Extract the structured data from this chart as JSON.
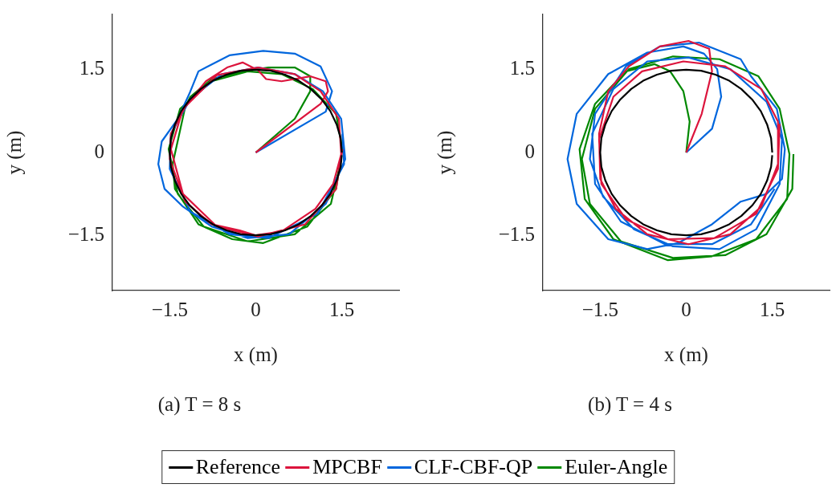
{
  "chart_data": [
    {
      "type": "line",
      "title": "(a) T = 8 s",
      "xlabel": "x (m)",
      "ylabel": "y (m)",
      "xlim": [
        -2.5,
        2.5
      ],
      "ylim": [
        -2.5,
        2.5
      ],
      "xticks": [
        -1.5,
        0,
        1.5
      ],
      "yticks": [
        -1.5,
        0,
        1.5
      ],
      "grid": false,
      "legend": "bottom",
      "marker": "none",
      "line_style": "solid",
      "series": [
        {
          "name": "Reference",
          "color": "#000000",
          "x": [
            1.5,
            1.48,
            1.41,
            1.3,
            1.15,
            0.96,
            0.75,
            0.51,
            0.26,
            0,
            -0.26,
            -0.51,
            -0.75,
            -0.96,
            -1.15,
            -1.3,
            -1.41,
            -1.48,
            -1.5,
            -1.48,
            -1.41,
            -1.3,
            -1.15,
            -0.96,
            -0.75,
            -0.51,
            -0.26,
            0,
            0.26,
            0.51,
            0.75,
            0.96,
            1.15,
            1.3,
            1.41,
            1.48,
            1.5
          ],
          "values": [
            0,
            0.26,
            0.51,
            0.75,
            0.96,
            1.15,
            1.3,
            1.41,
            1.48,
            1.5,
            1.48,
            1.41,
            1.3,
            1.15,
            0.96,
            0.75,
            0.51,
            0.26,
            0,
            -0.26,
            -0.51,
            -0.75,
            -0.96,
            -1.15,
            -1.3,
            -1.41,
            -1.48,
            -1.5,
            -1.48,
            -1.41,
            -1.3,
            -1.15,
            -0.96,
            -0.75,
            -0.51,
            -0.26,
            -0.05
          ]
        },
        {
          "name": "MPCBF",
          "color": "#dc143c",
          "x": [
            0,
            1.13,
            1.26,
            1.22,
            0.95,
            0.45,
            0.18,
            0.04,
            -0.23,
            -0.5,
            -0.87,
            -1.23,
            -1.48,
            -1.5,
            -1.36,
            -1.23,
            -0.77,
            -0.28,
            0,
            0.45,
            1.04,
            1.35,
            1.49,
            1.45,
            1.13,
            0.68,
            0.04,
            -0.68,
            -1.27,
            -1.48,
            -1.27,
            -0.68,
            0.04,
            0.86,
            1.4,
            1.51
          ],
          "values": [
            0,
            0.88,
            1.11,
            1.29,
            1.38,
            1.29,
            1.33,
            1.49,
            1.63,
            1.54,
            1.29,
            0.83,
            0.34,
            -0.12,
            -0.53,
            -0.89,
            -1.3,
            -1.41,
            -1.5,
            -1.43,
            -1.02,
            -0.57,
            -0.03,
            0.61,
            1.11,
            1.42,
            1.54,
            1.4,
            0.79,
            0.06,
            -0.75,
            -1.34,
            -1.52,
            -1.3,
            -0.66,
            0.06
          ]
        },
        {
          "name": "CLF-CBF-QP",
          "color": "#0066dd",
          "x": [
            0,
            1.22,
            1.33,
            1.13,
            0.68,
            0.13,
            -0.46,
            -1.0,
            -1.16,
            -1.36,
            -1.64,
            -1.7,
            -1.59,
            -1.27,
            -0.77,
            -0.14,
            0.58,
            1.22,
            1.56,
            1.49,
            1.17,
            0.68,
            0.04,
            -0.59,
            -1.14,
            -1.48,
            -1.5,
            -1.14,
            -0.46,
            0.22,
            1.08,
            1.54,
            1.51
          ],
          "values": [
            0,
            0.74,
            1.11,
            1.56,
            1.79,
            1.84,
            1.76,
            1.47,
            1.06,
            0.61,
            0.2,
            -0.21,
            -0.66,
            -0.98,
            -1.34,
            -1.55,
            -1.48,
            -0.93,
            -0.12,
            0.61,
            1.11,
            1.42,
            1.54,
            1.42,
            0.97,
            0.34,
            -0.3,
            -1.07,
            -1.48,
            -1.55,
            -1.11,
            -0.21,
            0.34
          ]
        },
        {
          "name": "Euler-Angle",
          "color": "#008800",
          "x": [
            0,
            0.68,
            0.95,
            0.95,
            0.68,
            0.22,
            -0.23,
            -0.77,
            -1.14,
            -1.23,
            -1.45,
            -1.41,
            -1.0,
            -0.41,
            0.13,
            0.9,
            1.4,
            1.51,
            1.4,
            0.99,
            0.45,
            -0.14,
            -0.77,
            -1.32,
            -1.52,
            -1.36,
            -0.91,
            -0.14,
            0.68,
            1.31,
            1.49
          ],
          "values": [
            0,
            0.61,
            1.11,
            1.38,
            1.54,
            1.54,
            1.47,
            1.33,
            1.01,
            0.83,
            -0.21,
            -0.66,
            -1.3,
            -1.57,
            -1.64,
            -1.34,
            -0.66,
            0.06,
            0.7,
            1.15,
            1.42,
            1.47,
            1.29,
            0.79,
            0.06,
            -0.75,
            -1.34,
            -1.61,
            -1.48,
            -0.93,
            -0.12
          ]
        }
      ]
    },
    {
      "type": "line",
      "title": "(b) T = 4 s",
      "xlabel": "x (m)",
      "ylabel": "y (m)",
      "xlim": [
        -2.5,
        2.5
      ],
      "ylim": [
        -2.5,
        2.5
      ],
      "xticks": [
        -1.5,
        0,
        1.5
      ],
      "yticks": [
        -1.5,
        0,
        1.5
      ],
      "grid": false,
      "legend": "bottom",
      "marker": "none",
      "line_style": "solid",
      "series": [
        {
          "name": "Reference",
          "color": "#000000",
          "x": [
            1.5,
            1.48,
            1.41,
            1.3,
            1.15,
            0.96,
            0.75,
            0.51,
            0.26,
            0,
            -0.26,
            -0.51,
            -0.75,
            -0.96,
            -1.15,
            -1.3,
            -1.41,
            -1.48,
            -1.5,
            -1.48,
            -1.41,
            -1.3,
            -1.15,
            -0.96,
            -0.75,
            -0.51,
            -0.26,
            0,
            0.26,
            0.51,
            0.75,
            0.96,
            1.15,
            1.3,
            1.41,
            1.48,
            1.5
          ],
          "values": [
            0,
            0.26,
            0.51,
            0.75,
            0.96,
            1.15,
            1.3,
            1.41,
            1.48,
            1.5,
            1.48,
            1.41,
            1.3,
            1.15,
            0.96,
            0.75,
            0.51,
            0.26,
            0,
            -0.26,
            -0.51,
            -0.75,
            -0.96,
            -1.15,
            -1.3,
            -1.41,
            -1.48,
            -1.5,
            -1.48,
            -1.41,
            -1.3,
            -1.15,
            -0.96,
            -0.75,
            -0.51,
            -0.26,
            -0.05
          ]
        },
        {
          "name": "MPCBF",
          "color": "#dc143c",
          "x": [
            0,
            0.27,
            0.45,
            0.4,
            0.04,
            -0.46,
            -1.0,
            -1.36,
            -1.52,
            -1.5,
            -1.23,
            -0.68,
            0.04,
            0.77,
            1.31,
            1.6,
            1.6,
            1.31,
            0.68,
            -0.05,
            -0.77,
            -1.27,
            -1.52,
            -1.48,
            -1.05,
            -0.32,
            0.49,
            1.22,
            1.6,
            1.63
          ],
          "values": [
            0,
            0.7,
            1.47,
            1.88,
            2.02,
            1.92,
            1.56,
            1.11,
            0.34,
            -0.48,
            -1.02,
            -1.48,
            -1.66,
            -1.48,
            -0.98,
            -0.21,
            0.56,
            1.15,
            1.56,
            1.65,
            1.47,
            1.01,
            0.24,
            -0.57,
            -1.21,
            -1.57,
            -1.55,
            -1.11,
            -0.3,
            0.52
          ]
        },
        {
          "name": "CLF-CBF-QP",
          "color": "#0066dd",
          "x": [
            0,
            0.45,
            0.61,
            0.54,
            0.31,
            -0.05,
            -0.68,
            -1.36,
            -1.91,
            -2.07,
            -1.91,
            -1.36,
            -0.68,
            -0.14,
            0.45,
            0.95,
            1.4,
            1.67,
            1.72,
            1.58,
            1.13,
            0.95,
            0.22,
            -0.46,
            -1.05,
            -1.59,
            -1.68,
            -1.45,
            -0.91,
            -0.23,
            0.58,
            1.22,
            1.63,
            1.67,
            1.4,
            0.77,
            0.04,
            -0.68,
            -1.27,
            -1.64,
            -1.59,
            -1.14,
            -0.37,
            0.45,
            1.13,
            1.54
          ],
          "values": [
            0,
            0.43,
            1.01,
            1.51,
            1.79,
            1.92,
            1.81,
            1.42,
            0.7,
            -0.12,
            -0.93,
            -1.57,
            -1.75,
            -1.64,
            -1.3,
            -0.89,
            -0.75,
            -0.48,
            0.06,
            0.79,
            1.38,
            1.69,
            1.99,
            1.92,
            1.56,
            0.7,
            -0.12,
            -0.8,
            -1.39,
            -1.7,
            -1.75,
            -1.39,
            -0.57,
            0.24,
            0.92,
            1.51,
            1.72,
            1.65,
            1.15,
            0.34,
            -0.57,
            -1.25,
            -1.66,
            -1.66,
            -1.3,
            -0.66
          ]
        },
        {
          "name": "Euler-Angle",
          "color": "#008800",
          "x": [
            0,
            0.06,
            -0.05,
            -0.28,
            -0.55,
            -1.05,
            -1.59,
            -1.86,
            -1.77,
            -1.27,
            -0.32,
            0.45,
            1.22,
            1.76,
            1.8,
            1.63,
            1.26,
            0.58,
            -0.23,
            -1.0,
            -1.59,
            -1.82,
            -1.68,
            -1.14,
            -0.23,
            0.68,
            1.4,
            1.85,
            1.87
          ],
          "values": [
            0,
            0.56,
            1.11,
            1.47,
            1.6,
            1.47,
            0.88,
            0.06,
            -0.84,
            -1.57,
            -1.95,
            -1.88,
            -1.57,
            -0.84,
            -0.03,
            0.79,
            1.38,
            1.69,
            1.74,
            1.51,
            0.79,
            -0.12,
            -0.93,
            -1.61,
            -1.91,
            -1.86,
            -1.48,
            -0.66,
            -0.03
          ]
        }
      ]
    }
  ]
}
